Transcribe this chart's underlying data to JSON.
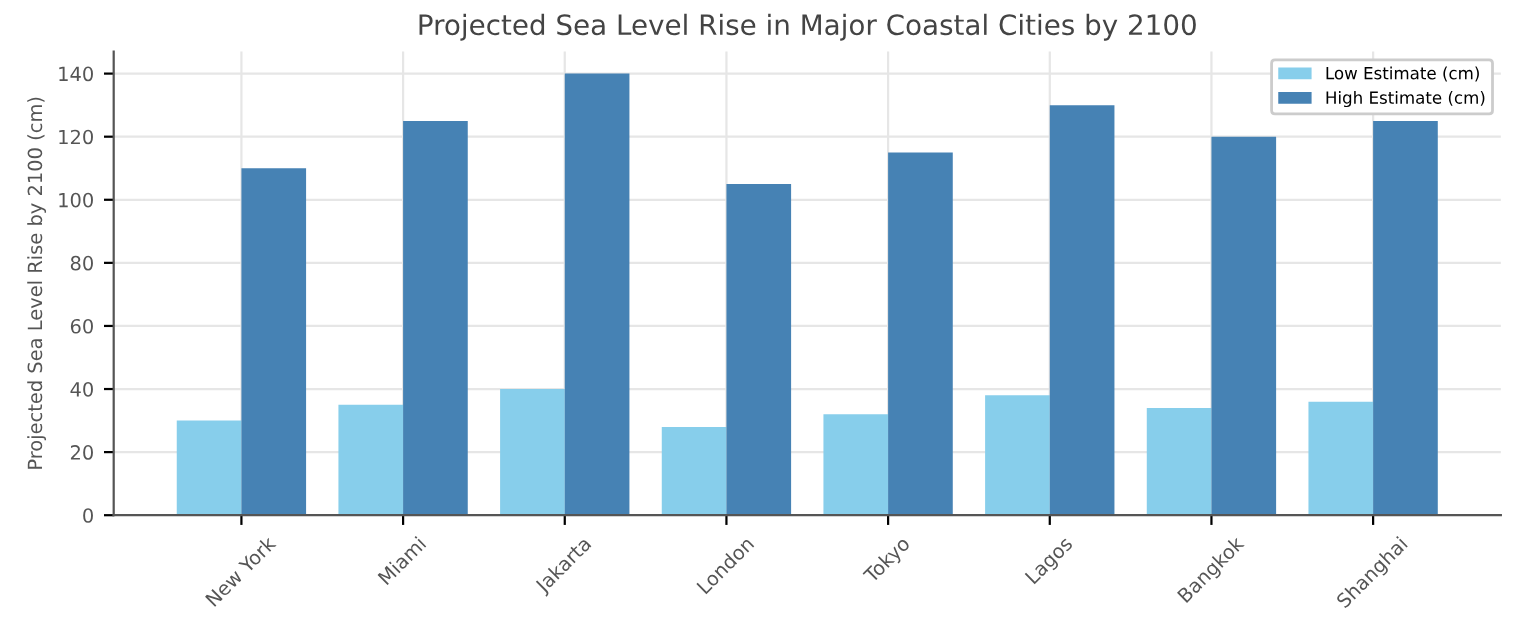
{
  "chart_data": {
    "type": "bar",
    "title": "Projected Sea Level Rise in Major Coastal Cities by 2100",
    "ylabel": "Projected Sea Level Rise by 2100 (cm)",
    "categories": [
      "New York",
      "Miami",
      "Jakarta",
      "London",
      "Tokyo",
      "Lagos",
      "Bangkok",
      "Shanghai"
    ],
    "series": [
      {
        "name": "Low Estimate (cm)",
        "color": "#87ceeb",
        "values": [
          30,
          35,
          40,
          28,
          32,
          38,
          34,
          36
        ]
      },
      {
        "name": "High Estimate (cm)",
        "color": "#4682b4",
        "values": [
          110,
          125,
          140,
          105,
          115,
          130,
          120,
          125
        ]
      }
    ],
    "ylim": [
      0,
      147
    ],
    "yticks": [
      0,
      20,
      40,
      60,
      80,
      100,
      120,
      140
    ],
    "grid": true,
    "legend": "top right"
  }
}
